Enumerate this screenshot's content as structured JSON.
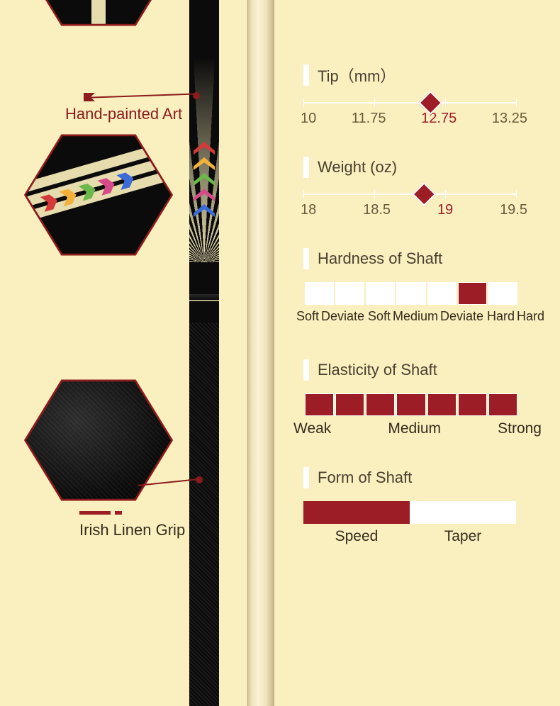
{
  "colors": {
    "background": "#f9efbf",
    "accent": "#9d1d27",
    "accent_line": "#8c1b1b",
    "white": "#ffffff",
    "text_muted": "#6a5b3e",
    "text_dark": "#352c1c",
    "wood_light": "#faf2d0",
    "wood_mid": "#e6dcae",
    "black": "#0b0b0b"
  },
  "callouts": {
    "art": "Hand-painted Art",
    "grip": "Irish Linen Grip"
  },
  "chevron_colors": [
    "#d43a3a",
    "#f2b23a",
    "#6bb94a",
    "#d64a8a",
    "#3a6bd6"
  ],
  "sections": {
    "tip": {
      "title": "Tip（mm）",
      "scale": [
        "10",
        "11.75",
        "12.75",
        "13.25"
      ],
      "marker_percent": 60,
      "active_index": 2
    },
    "weight": {
      "title": "Weight (oz)",
      "scale": [
        "18",
        "18.5",
        "19",
        "19.5"
      ],
      "marker_percent": 57,
      "active_index": 2
    },
    "hardness": {
      "title": "Hardness of Shaft",
      "cells": 7,
      "filled_index": 5,
      "labels": [
        "Soft",
        "Deviate Soft",
        "Medium",
        "Deviate Hard",
        "Hard"
      ]
    },
    "elasticity": {
      "title": "Elasticity of Shaft",
      "cells": 7,
      "labels": [
        "Weak",
        "Medium",
        "Strong"
      ]
    },
    "form": {
      "title": "Form of Shaft",
      "left": "Speed",
      "right": "Taper",
      "fill_left": true
    }
  }
}
